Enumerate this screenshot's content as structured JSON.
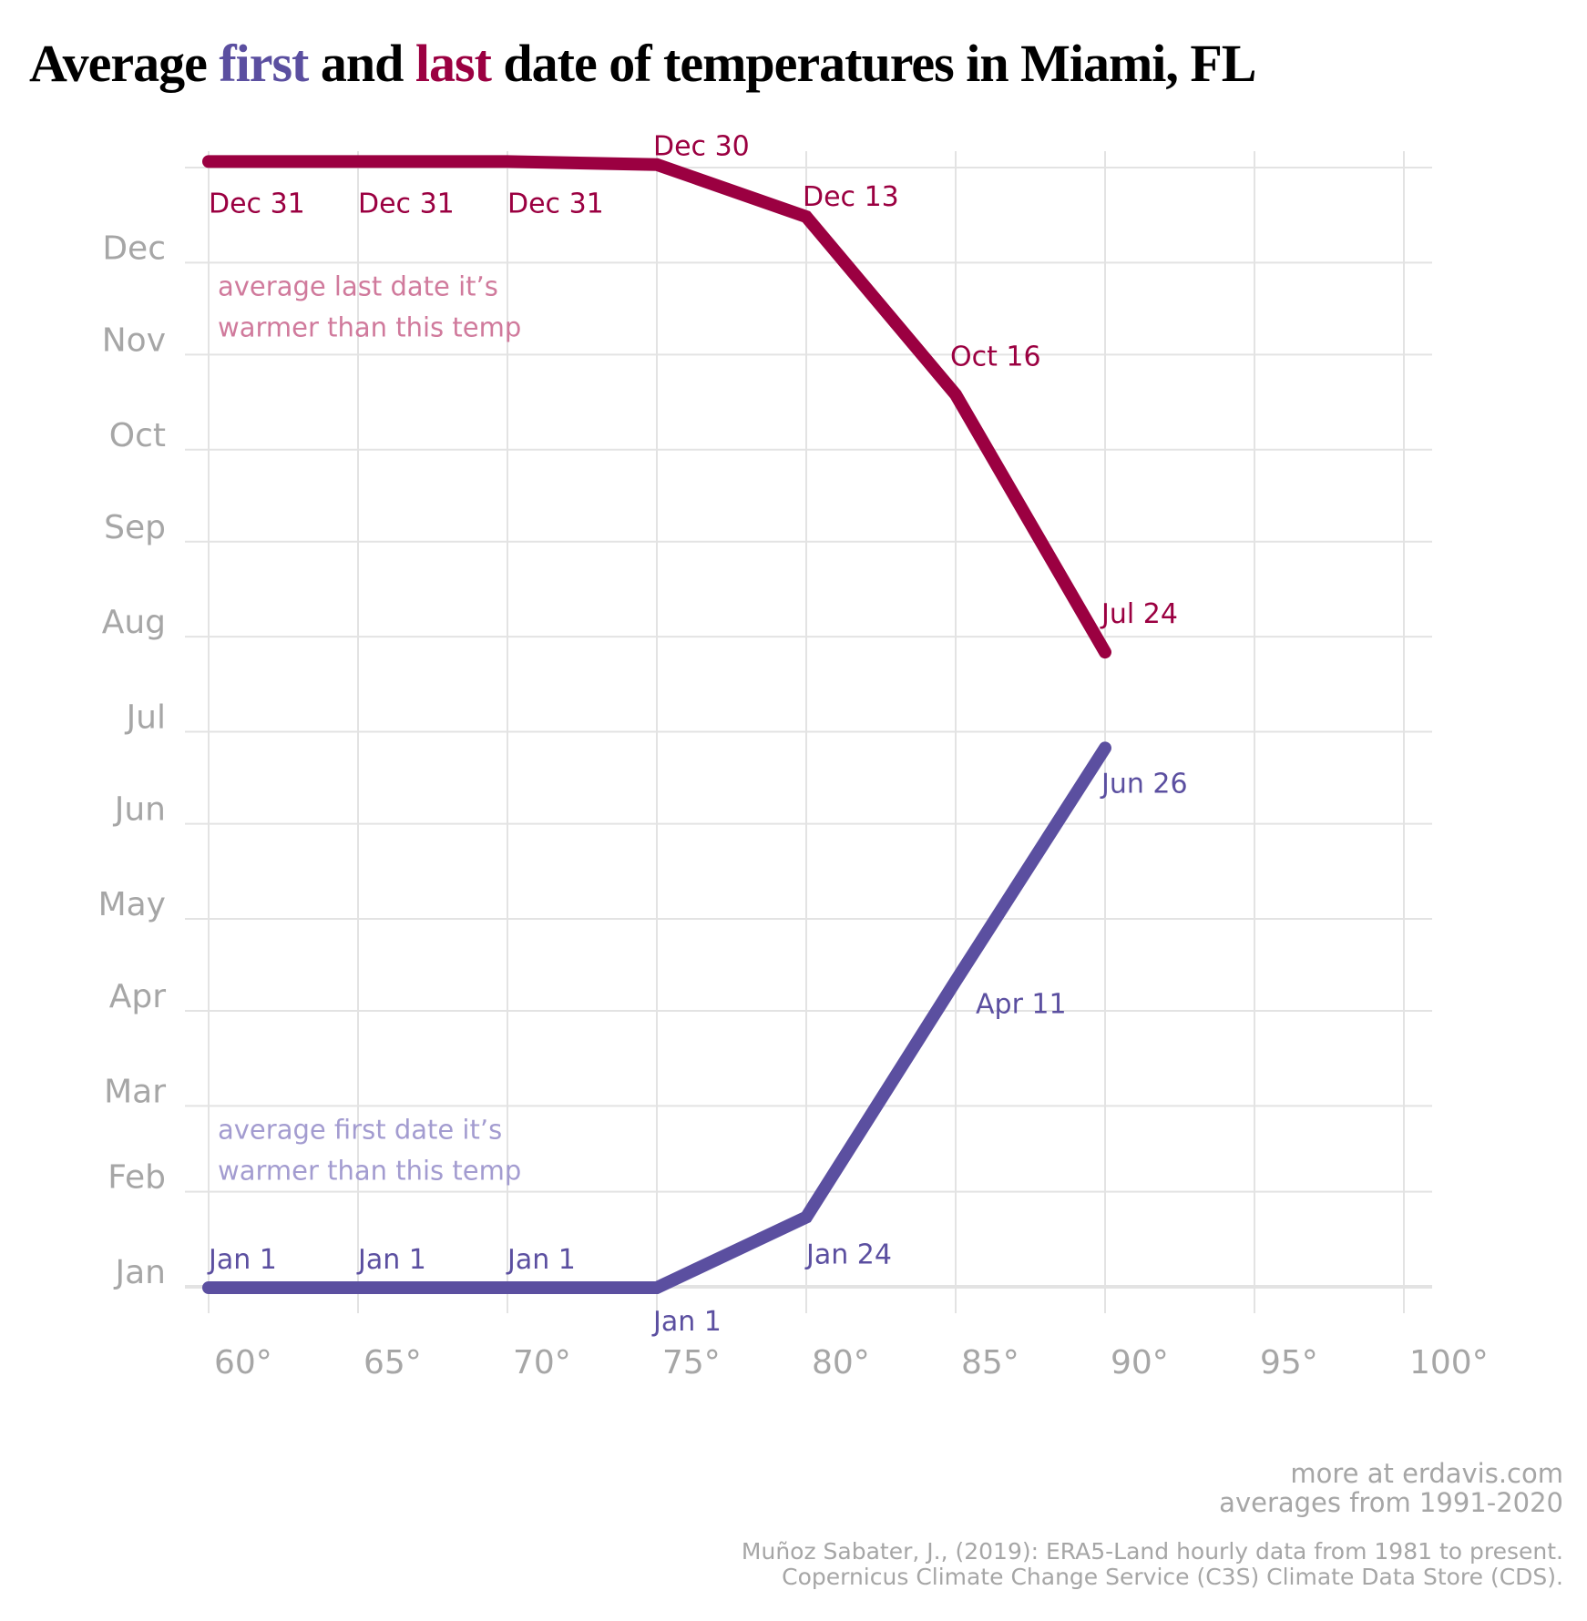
{
  "title": {
    "prefix": "Average ",
    "first_word": "first",
    "middle": " and ",
    "last_word": "last",
    "suffix": " date of temperatures in Miami, FL"
  },
  "colors": {
    "first": "#5b4fa0",
    "last": "#9b0041",
    "first_annotation": "#a39cd0",
    "last_annotation": "#d07a9c",
    "axis_text": "#a6a6a6",
    "grid": "#e3e3e3"
  },
  "footer": {
    "line1": "more at erdavis.com",
    "line2": "averages from 1991-2020",
    "source1": "Muñoz Sabater, J., (2019): ERA5-Land hourly data from 1981 to present.",
    "source2": "Copernicus Climate Change Service (C3S) Climate Data Store (CDS)."
  },
  "chart_data": {
    "type": "line",
    "title": "Average first and last date of temperatures in Miami, FL",
    "xlabel": "",
    "ylabel": "",
    "x": [
      60,
      65,
      70,
      75,
      80,
      85,
      90
    ],
    "xlim": [
      60,
      100
    ],
    "x_ticks": [
      60,
      65,
      70,
      75,
      80,
      85,
      90,
      95,
      100
    ],
    "x_tick_labels": [
      "60°",
      "65°",
      "70°",
      "75°",
      "80°",
      "85°",
      "90°",
      "95°",
      "100°"
    ],
    "y_unit": "day of year (0 = Jan 1)",
    "ylim": [
      0,
      365
    ],
    "y_ticks": [
      0,
      31,
      59,
      90,
      120,
      151,
      181,
      212,
      243,
      273,
      304,
      334
    ],
    "y_tick_labels": [
      "Jan",
      "Feb",
      "Mar",
      "Apr",
      "May",
      "Jun",
      "Jul",
      "Aug",
      "Sep",
      "Oct",
      "Nov",
      "Dec"
    ],
    "grid": true,
    "series": [
      {
        "name": "last",
        "description": "average last date it's warmer than this temp",
        "values": [
          364,
          364,
          364,
          363,
          346,
          288,
          204
        ],
        "labels": [
          "Dec 31",
          "Dec 31",
          "Dec 31",
          "Dec 30",
          "Dec 13",
          "Oct 16",
          "Jul 24"
        ]
      },
      {
        "name": "first",
        "description": "average first date it's warmer than this temp",
        "values": [
          0,
          0,
          0,
          0,
          23,
          100,
          176
        ],
        "labels": [
          "Jan 1",
          "Jan 1",
          "Jan 1",
          "Jan 1",
          "Jan 24",
          "Apr 11",
          "Jun 26"
        ]
      }
    ],
    "annotations": [
      {
        "series": "last",
        "lines": [
          "average last date it’s",
          "warmer than this temp"
        ]
      },
      {
        "series": "first",
        "lines": [
          "average first date it’s",
          "warmer than this temp"
        ]
      }
    ]
  }
}
